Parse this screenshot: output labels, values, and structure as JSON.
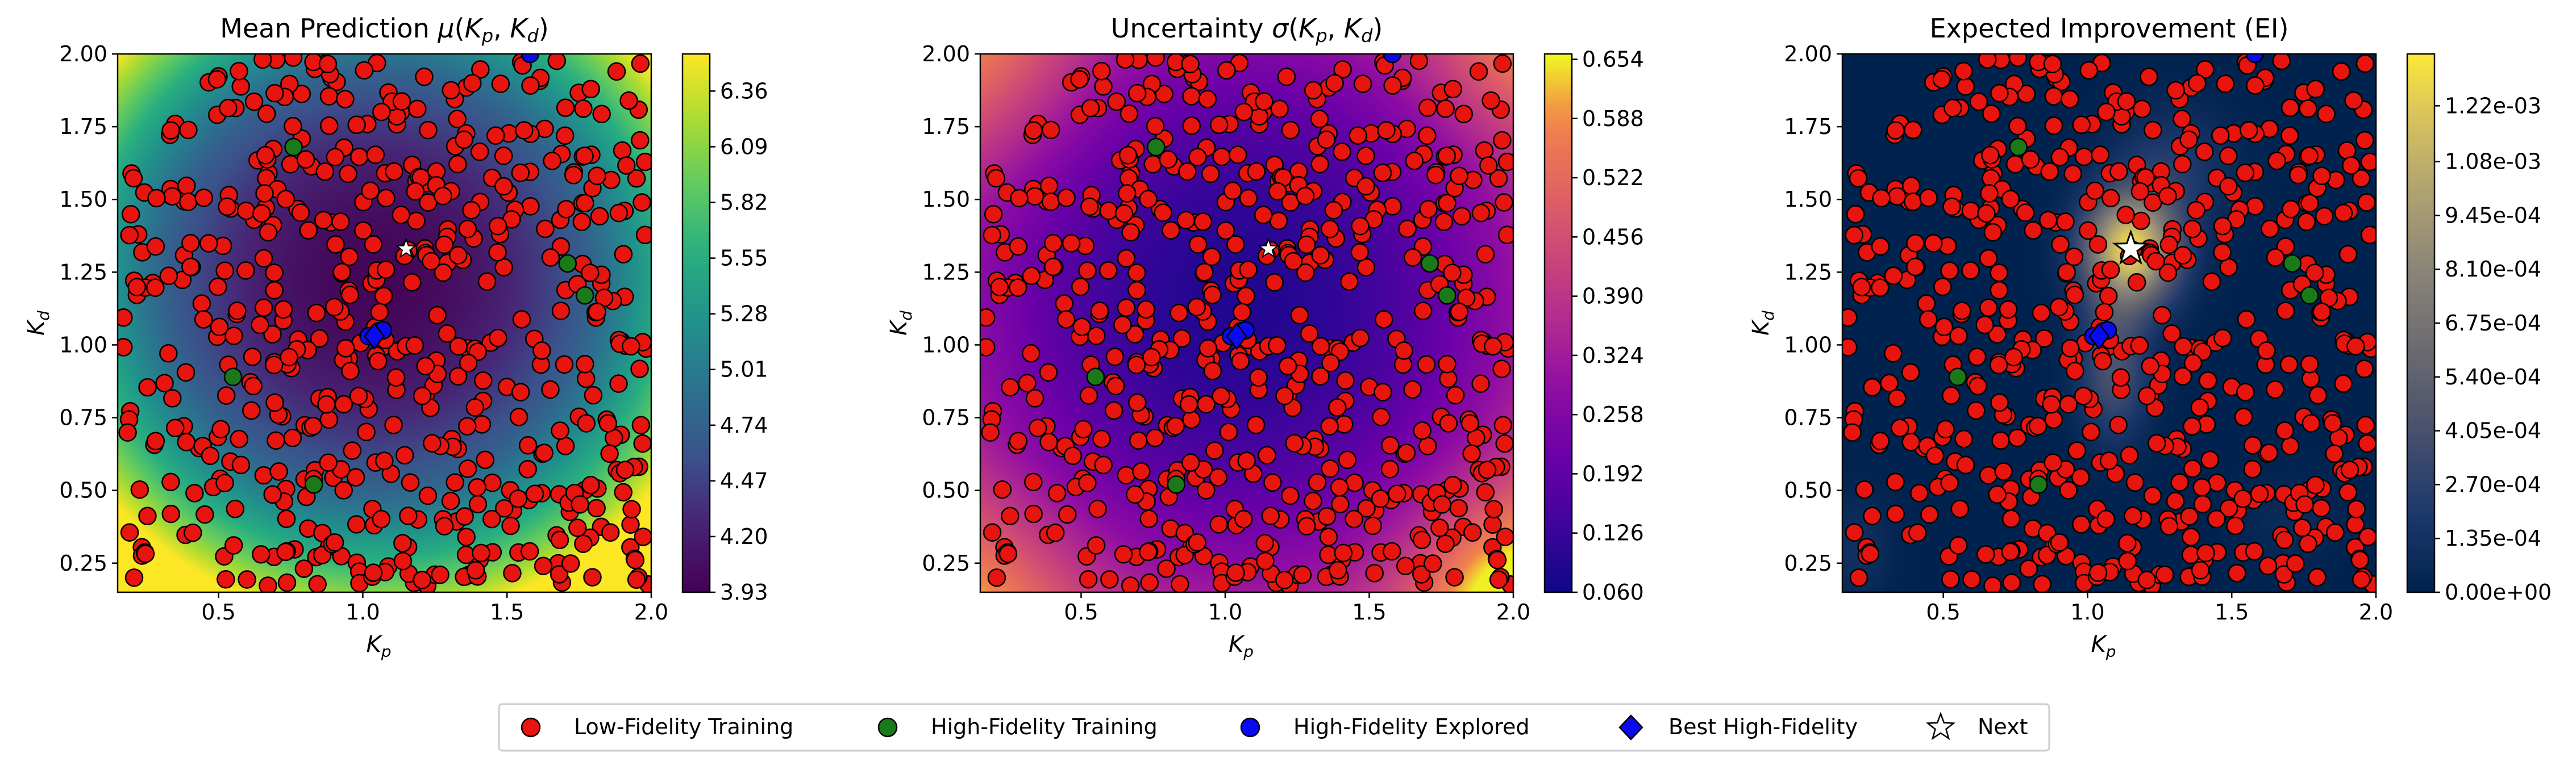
{
  "legend": {
    "items": [
      {
        "key": "lf",
        "label": "Low-Fidelity Training",
        "marker": "circle",
        "color": "#e8140f"
      },
      {
        "key": "hf",
        "label": "High-Fidelity Training",
        "marker": "circle",
        "color": "#1a7a1a"
      },
      {
        "key": "hfe",
        "label": "High-Fidelity Explored",
        "marker": "circle",
        "color": "#0a0af0"
      },
      {
        "key": "best",
        "label": "Best High-Fidelity",
        "marker": "diamond",
        "color": "#0a0af0"
      },
      {
        "key": "next",
        "label": "Next",
        "marker": "star",
        "color": "#ffffff"
      }
    ],
    "placement": "bottom-center"
  },
  "chart_data": [
    {
      "type": "heatmap",
      "title": "Mean Prediction μ(Kp, Kd)",
      "xlabel": "Kp",
      "ylabel": "Kd",
      "xlim": [
        0.15,
        2.0
      ],
      "ylim": [
        0.15,
        2.0
      ],
      "xticks": [
        "0.5",
        "1.0",
        "1.5",
        "2.0"
      ],
      "yticks": [
        "0.25",
        "0.50",
        "0.75",
        "1.00",
        "1.25",
        "1.50",
        "1.75",
        "2.00"
      ],
      "colormap": "viridis",
      "colorbar": {
        "min": 3.93,
        "max": 6.54,
        "ticks": [
          "3.93",
          "4.20",
          "4.47",
          "4.74",
          "5.01",
          "5.28",
          "5.55",
          "5.82",
          "6.09",
          "6.36"
        ]
      },
      "field_minimum": [
        1.0,
        1.25
      ]
    },
    {
      "type": "heatmap",
      "title": "Uncertainty σ(Kp, Kd)",
      "xlabel": "Kp",
      "ylabel": "Kd",
      "xlim": [
        0.15,
        2.0
      ],
      "ylim": [
        0.15,
        2.0
      ],
      "xticks": [
        "0.5",
        "1.0",
        "1.5",
        "2.0"
      ],
      "yticks": [
        "0.25",
        "0.50",
        "0.75",
        "1.00",
        "1.25",
        "1.50",
        "1.75",
        "2.00"
      ],
      "colormap": "plasma",
      "colorbar": {
        "min": 0.06,
        "max": 0.66,
        "ticks": [
          "0.060",
          "0.126",
          "0.192",
          "0.258",
          "0.324",
          "0.390",
          "0.456",
          "0.522",
          "0.588",
          "0.654"
        ]
      }
    },
    {
      "type": "heatmap",
      "title": "Expected Improvement (EI)",
      "xlabel": "Kp",
      "ylabel": "Kd",
      "xlim": [
        0.15,
        2.0
      ],
      "ylim": [
        0.15,
        2.0
      ],
      "xticks": [
        "0.5",
        "1.0",
        "1.5",
        "2.0"
      ],
      "yticks": [
        "0.25",
        "0.50",
        "0.75",
        "1.00",
        "1.25",
        "1.50",
        "1.75",
        "2.00"
      ],
      "colormap": "cividis",
      "colorbar": {
        "min": 0.0,
        "max": 0.00135,
        "ticks": [
          "0.00e+00",
          "1.35e-04",
          "2.70e-04",
          "4.05e-04",
          "5.40e-04",
          "6.75e-04",
          "8.10e-04",
          "9.45e-04",
          "1.08e-03",
          "1.22e-03"
        ]
      },
      "peak": [
        1.15,
        1.33
      ]
    }
  ],
  "points": {
    "high_fidelity_training": [
      [
        0.76,
        1.68
      ],
      [
        1.71,
        1.28
      ],
      [
        1.77,
        1.17
      ],
      [
        0.55,
        0.89
      ],
      [
        0.83,
        0.52
      ]
    ],
    "high_fidelity_explored": [
      [
        1.02,
        1.03
      ],
      [
        1.07,
        1.05
      ],
      [
        1.58,
        2.0
      ]
    ],
    "best_high_fidelity": [
      1.04,
      1.03
    ],
    "next": [
      1.15,
      1.33
    ],
    "low_fidelity_training_count": 560
  }
}
